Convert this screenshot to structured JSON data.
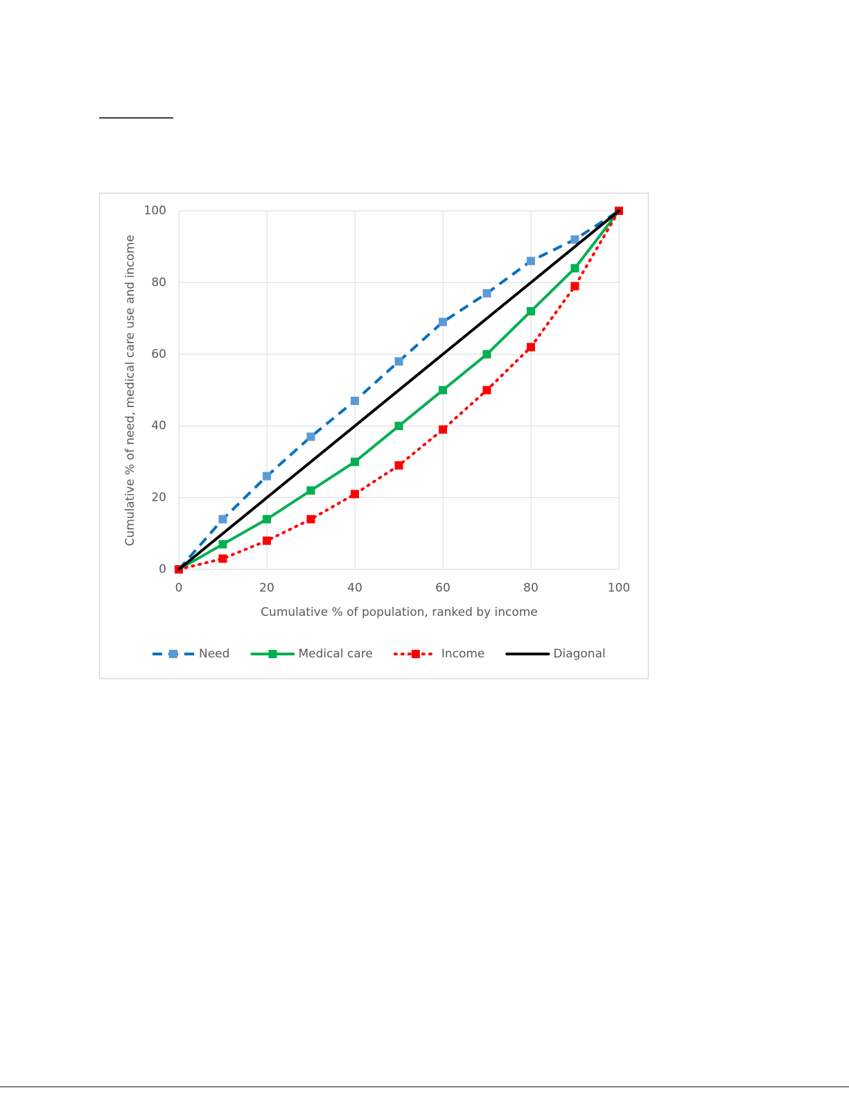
{
  "chart_data": {
    "type": "line",
    "xlabel": "Cumulative % of population, ranked by income",
    "ylabel": "Cumulative % of need, medical care use and income",
    "x": [
      0,
      10,
      20,
      30,
      40,
      50,
      60,
      70,
      80,
      90,
      100
    ],
    "series": [
      {
        "name": "Need",
        "color": "#0070c0",
        "marker_color": "#5b9bd5",
        "dash": "dashed",
        "marker": "square",
        "values": [
          0,
          14,
          26,
          37,
          47,
          58,
          69,
          77,
          86,
          92,
          100
        ]
      },
      {
        "name": "Medical care",
        "color": "#00b050",
        "marker_color": "#00b050",
        "dash": "solid",
        "marker": "square",
        "values": [
          0,
          7,
          14,
          22,
          30,
          40,
          50,
          60,
          72,
          84,
          100
        ]
      },
      {
        "name": "Income",
        "color": "#ff0000",
        "marker_color": "#ff0000",
        "dash": "dotted",
        "marker": "square",
        "values": [
          0,
          3,
          8,
          14,
          21,
          29,
          39,
          50,
          62,
          79,
          100
        ]
      },
      {
        "name": "Diagonal",
        "color": "#000000",
        "dash": "solid",
        "marker": "none",
        "x": [
          0,
          100
        ],
        "values": [
          0,
          100
        ]
      }
    ],
    "xlim": [
      0,
      100
    ],
    "xticks": [
      0,
      20,
      40,
      60,
      80,
      100
    ],
    "ylim": [
      0,
      100
    ],
    "yticks": [
      0,
      20,
      40,
      60,
      80,
      100
    ],
    "grid": true,
    "legend": "bottom"
  }
}
